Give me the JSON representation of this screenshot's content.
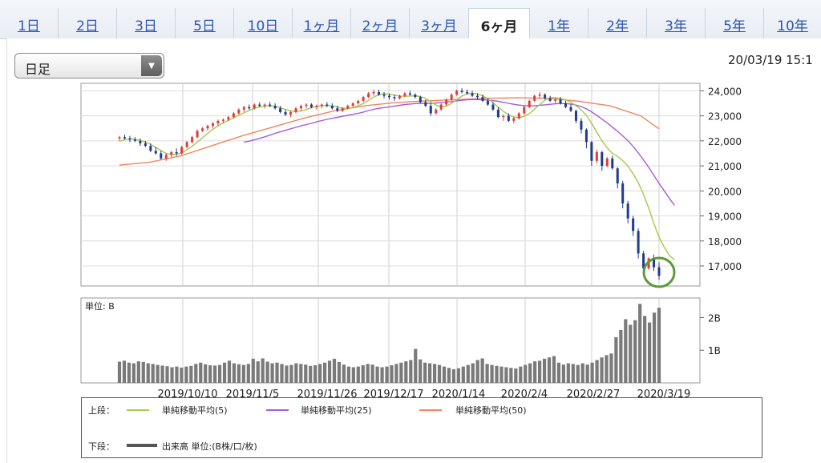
{
  "tabs": [
    {
      "label": "1日",
      "active": false
    },
    {
      "label": "2日",
      "active": false
    },
    {
      "label": "3日",
      "active": false
    },
    {
      "label": "5日",
      "active": false
    },
    {
      "label": "10日",
      "active": false
    },
    {
      "label": "1ヶ月",
      "active": false
    },
    {
      "label": "2ヶ月",
      "active": false
    },
    {
      "label": "3ヶ月",
      "active": false
    },
    {
      "label": "6ヶ月",
      "active": true
    },
    {
      "label": "1年",
      "active": false
    },
    {
      "label": "2年",
      "active": false
    },
    {
      "label": "3年",
      "active": false
    },
    {
      "label": "5年",
      "active": false
    },
    {
      "label": "10年",
      "active": false
    }
  ],
  "controls": {
    "period_select": "日足",
    "timestamp": "20/03/19 15:1"
  },
  "chart_data": [
    {
      "type": "line",
      "x_tick_labels": [
        "2019/10/10",
        "2019/11/5",
        "2019/11/26",
        "2019/12/17",
        "2020/1/14",
        "2020/2/4",
        "2020/2/27",
        "2020/3/19"
      ],
      "y_tick_labels": [
        "24,000",
        "23,000",
        "22,000",
        "21,000",
        "20,000",
        "19,000",
        "18,000",
        "17,000"
      ],
      "ylim": [
        16200,
        24300
      ],
      "grid": true,
      "colors": {
        "up": "#e23b3b",
        "down": "#1f3a8f",
        "ma5": "#a5c94a",
        "ma25": "#a45cd6",
        "ma50": "#f08560"
      },
      "candles": [
        [
          22100,
          22200,
          22000,
          22150
        ],
        [
          22150,
          22250,
          22050,
          22100
        ],
        [
          22100,
          22200,
          21950,
          22050
        ],
        [
          22050,
          22150,
          21950,
          22000
        ],
        [
          22000,
          22100,
          21800,
          21900
        ],
        [
          21900,
          22000,
          21750,
          21800
        ],
        [
          21800,
          21900,
          21550,
          21600
        ],
        [
          21600,
          21750,
          21450,
          21500
        ],
        [
          21500,
          21600,
          21250,
          21300
        ],
        [
          21300,
          21500,
          21200,
          21450
        ],
        [
          21450,
          21600,
          21350,
          21550
        ],
        [
          21550,
          21700,
          21400,
          21500
        ],
        [
          21500,
          21800,
          21450,
          21750
        ],
        [
          21750,
          22000,
          21700,
          21950
        ],
        [
          21950,
          22200,
          21900,
          22150
        ],
        [
          22150,
          22450,
          22100,
          22400
        ],
        [
          22400,
          22550,
          22350,
          22500
        ],
        [
          22500,
          22650,
          22400,
          22600
        ],
        [
          22600,
          22750,
          22500,
          22700
        ],
        [
          22700,
          22850,
          22600,
          22800
        ],
        [
          22800,
          22900,
          22700,
          22850
        ],
        [
          22850,
          23000,
          22800,
          22950
        ],
        [
          22950,
          23150,
          22900,
          23100
        ],
        [
          23100,
          23300,
          23050,
          23250
        ],
        [
          23250,
          23400,
          23150,
          23350
        ],
        [
          23350,
          23450,
          23250,
          23300
        ],
        [
          23300,
          23500,
          23250,
          23450
        ],
        [
          23450,
          23550,
          23350,
          23400
        ],
        [
          23400,
          23500,
          23300,
          23450
        ],
        [
          23450,
          23550,
          23350,
          23400
        ],
        [
          23400,
          23500,
          23250,
          23300
        ],
        [
          23300,
          23400,
          23100,
          23150
        ],
        [
          23150,
          23250,
          23000,
          23050
        ],
        [
          23050,
          23200,
          22950,
          23150
        ],
        [
          23150,
          23350,
          23100,
          23300
        ],
        [
          23300,
          23450,
          23200,
          23400
        ],
        [
          23400,
          23500,
          23300,
          23450
        ],
        [
          23450,
          23500,
          23300,
          23350
        ],
        [
          23350,
          23450,
          23250,
          23400
        ],
        [
          23400,
          23500,
          23300,
          23450
        ],
        [
          23450,
          23550,
          23350,
          23400
        ],
        [
          23400,
          23500,
          23250,
          23300
        ],
        [
          23300,
          23400,
          23150,
          23200
        ],
        [
          23200,
          23350,
          23150,
          23300
        ],
        [
          23300,
          23450,
          23250,
          23400
        ],
        [
          23400,
          23550,
          23350,
          23500
        ],
        [
          23500,
          23650,
          23450,
          23600
        ],
        [
          23600,
          23800,
          23550,
          23750
        ],
        [
          23750,
          23950,
          23700,
          23900
        ],
        [
          23900,
          24050,
          23800,
          23950
        ],
        [
          23950,
          24050,
          23800,
          23850
        ],
        [
          23850,
          23950,
          23700,
          23800
        ],
        [
          23800,
          23900,
          23650,
          23750
        ],
        [
          23750,
          23850,
          23600,
          23700
        ],
        [
          23700,
          23850,
          23650,
          23800
        ],
        [
          23800,
          23950,
          23750,
          23900
        ],
        [
          23900,
          24000,
          23800,
          23850
        ],
        [
          23850,
          23900,
          23700,
          23750
        ],
        [
          23750,
          23800,
          23500,
          23550
        ],
        [
          23550,
          23650,
          23350,
          23400
        ],
        [
          23400,
          23500,
          23000,
          23100
        ],
        [
          23100,
          23300,
          23050,
          23250
        ],
        [
          23250,
          23500,
          23200,
          23450
        ],
        [
          23450,
          23700,
          23400,
          23650
        ],
        [
          23650,
          23900,
          23600,
          23850
        ],
        [
          23850,
          24050,
          23800,
          24000
        ],
        [
          24000,
          24100,
          23900,
          23950
        ],
        [
          23950,
          24050,
          23850,
          23900
        ],
        [
          23900,
          24000,
          23750,
          23800
        ],
        [
          23800,
          23900,
          23650,
          23750
        ],
        [
          23750,
          23850,
          23550,
          23600
        ],
        [
          23600,
          23700,
          23400,
          23450
        ],
        [
          23450,
          23550,
          23200,
          23250
        ],
        [
          23250,
          23350,
          22900,
          22950
        ],
        [
          22950,
          23050,
          22800,
          23000
        ],
        [
          23000,
          23100,
          22750,
          22800
        ],
        [
          22800,
          22950,
          22700,
          22900
        ],
        [
          22900,
          23150,
          22850,
          23100
        ],
        [
          23100,
          23400,
          23050,
          23350
        ],
        [
          23350,
          23650,
          23300,
          23600
        ],
        [
          23600,
          23850,
          23550,
          23800
        ],
        [
          23800,
          23950,
          23700,
          23850
        ],
        [
          23850,
          23900,
          23650,
          23700
        ],
        [
          23700,
          23800,
          23550,
          23600
        ],
        [
          23600,
          23700,
          23500,
          23650
        ],
        [
          23650,
          23750,
          23450,
          23500
        ],
        [
          23500,
          23600,
          23300,
          23350
        ],
        [
          23350,
          23450,
          23150,
          23200
        ],
        [
          23200,
          23250,
          22700,
          22800
        ],
        [
          22800,
          22900,
          22300,
          22450
        ],
        [
          22450,
          22500,
          21700,
          21950
        ],
        [
          21950,
          22000,
          21000,
          21200
        ],
        [
          21200,
          21650,
          21100,
          21550
        ],
        [
          21550,
          21600,
          20800,
          21000
        ],
        [
          21000,
          21350,
          20950,
          21300
        ],
        [
          21300,
          21400,
          20850,
          20900
        ],
        [
          20900,
          20950,
          20100,
          20300
        ],
        [
          20300,
          20400,
          19300,
          19500
        ],
        [
          19500,
          19600,
          18700,
          18900
        ],
        [
          18900,
          19000,
          18200,
          18400
        ],
        [
          18400,
          18500,
          17300,
          17500
        ],
        [
          17500,
          17600,
          16750,
          16900
        ],
        [
          16900,
          17350,
          16850,
          17300
        ],
        [
          17300,
          17450,
          16800,
          16950
        ],
        [
          16950,
          17150,
          16450,
          16600
        ]
      ],
      "moving_averages": {
        "ma5": [
          21980,
          22050,
          22080,
          22060,
          22020,
          21950,
          21860,
          21740,
          21610,
          21500,
          21450,
          21470,
          21520,
          21650,
          21780,
          21950,
          22120,
          22300,
          22460,
          22600,
          22720,
          22820,
          22920,
          23020,
          23120,
          23220,
          23300,
          23360,
          23390,
          23400,
          23380,
          23320,
          23260,
          23200,
          23180,
          23190,
          23250,
          23330,
          23380,
          23400,
          23410,
          23400,
          23350,
          23300,
          23300,
          23330,
          23400,
          23490,
          23620,
          23750,
          23850,
          23880,
          23860,
          23830,
          23790,
          23780,
          23790,
          23800,
          23770,
          23700,
          23560,
          23430,
          23360,
          23380,
          23500,
          23650,
          23790,
          23880,
          23900,
          23880,
          23800,
          23690,
          23530,
          23350,
          23180,
          23040,
          22960,
          22920,
          22980,
          23090,
          23270,
          23450,
          23620,
          23720,
          23730,
          23690,
          23640,
          23540,
          23400,
          23240,
          23020,
          22700,
          22350,
          22000,
          21720,
          21500,
          21380,
          21210,
          20990,
          20690,
          20330,
          19860,
          19320,
          18700,
          18150,
          17750,
          17420,
          17240
        ],
        "ma25": [
          null,
          null,
          null,
          null,
          null,
          null,
          null,
          null,
          null,
          null,
          null,
          null,
          null,
          null,
          null,
          null,
          null,
          null,
          null,
          null,
          null,
          null,
          null,
          null,
          21950,
          21990,
          22040,
          22100,
          22160,
          22230,
          22300,
          22360,
          22420,
          22480,
          22540,
          22600,
          22650,
          22700,
          22760,
          22810,
          22860,
          22900,
          22940,
          22980,
          23020,
          23060,
          23100,
          23150,
          23210,
          23260,
          23300,
          23330,
          23360,
          23390,
          23420,
          23450,
          23470,
          23490,
          23500,
          23500,
          23500,
          23510,
          23530,
          23550,
          23570,
          23600,
          23620,
          23640,
          23650,
          23650,
          23640,
          23630,
          23610,
          23580,
          23540,
          23500,
          23460,
          23430,
          23410,
          23400,
          23400,
          23420,
          23440,
          23460,
          23480,
          23490,
          23490,
          23470,
          23430,
          23370,
          23280,
          23160,
          23020,
          22870,
          22720,
          22550,
          22380,
          22200,
          22000,
          21780,
          21520,
          21240,
          20940,
          20620,
          20300,
          20000,
          19700,
          19420
        ]
      },
      "ma50_points": [
        [
          0,
          21030
        ],
        [
          10,
          21150
        ],
        [
          20,
          21400
        ],
        [
          30,
          21800
        ],
        [
          40,
          22200
        ],
        [
          50,
          22550
        ],
        [
          60,
          22900
        ],
        [
          70,
          23200
        ],
        [
          80,
          23400
        ],
        [
          90,
          23530
        ],
        [
          100,
          23600
        ],
        [
          110,
          23650
        ],
        [
          120,
          23700
        ],
        [
          130,
          23720
        ],
        [
          140,
          23700
        ],
        [
          150,
          23580
        ],
        [
          160,
          23400
        ],
        [
          170,
          23000
        ],
        [
          176,
          22480
        ]
      ]
    },
    {
      "type": "bar",
      "unit_label": "単位: B",
      "y_tick_labels": [
        "2B",
        "1B"
      ],
      "ylim": [
        0,
        2.6
      ],
      "values": [
        0.65,
        0.68,
        0.62,
        0.6,
        0.66,
        0.64,
        0.6,
        0.58,
        0.55,
        0.53,
        0.51,
        0.48,
        0.5,
        0.47,
        0.5,
        0.52,
        0.58,
        0.62,
        0.57,
        0.54,
        0.53,
        0.55,
        0.62,
        0.68,
        0.6,
        0.57,
        0.55,
        0.58,
        0.74,
        0.66,
        0.75,
        0.65,
        0.6,
        0.62,
        0.58,
        0.53,
        0.55,
        0.6,
        0.58,
        0.56,
        0.52,
        0.54,
        0.58,
        0.62,
        0.68,
        0.74,
        0.64,
        0.56,
        0.5,
        0.48,
        0.5,
        0.54,
        0.58,
        0.56,
        0.5,
        0.48,
        0.5,
        0.54,
        0.58,
        0.62,
        0.66,
        0.7,
        1.04,
        0.72,
        0.62,
        0.6,
        0.58,
        0.55,
        0.5,
        0.46,
        0.42,
        0.45,
        0.5,
        0.55,
        0.6,
        0.7,
        0.75,
        0.58,
        0.55,
        0.52,
        0.5,
        0.48,
        0.46,
        0.44,
        0.5,
        0.55,
        0.6,
        0.66,
        0.68,
        0.74,
        0.78,
        0.82,
        0.62,
        0.56,
        0.6,
        0.58,
        0.55,
        0.6,
        0.56,
        0.62,
        0.7,
        0.78,
        0.85,
        0.9,
        1.4,
        1.62,
        1.95,
        1.78,
        1.92,
        2.42,
        2.05,
        1.85,
        2.15,
        2.3
      ]
    }
  ],
  "legend": {
    "upper_label": "上段：",
    "lower_label": "下段：",
    "items": [
      {
        "name": "単純移動平均(5)",
        "color": "#a5c94a"
      },
      {
        "name": "単純移動平均(25)",
        "color": "#a45cd6"
      },
      {
        "name": "単純移動平均(50)",
        "color": "#f08560"
      }
    ],
    "volume_text": "出来高 単位:(B株/口/枚)",
    "volume_color": "#555555"
  }
}
